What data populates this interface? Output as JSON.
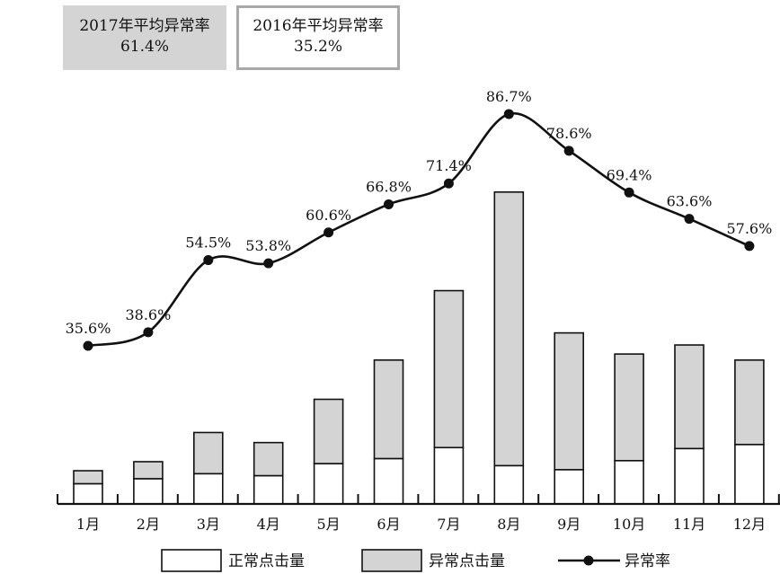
{
  "summary": {
    "box_2017": {
      "title": "2017年平均异常率",
      "value": "61.4%",
      "bg": "#d4d4d4"
    },
    "box_2016": {
      "title": "2016年平均异常率",
      "value": "35.2%",
      "border": "#a8a8a8"
    }
  },
  "chart_data": {
    "type": "bar",
    "stacked": true,
    "categories": [
      "1月",
      "2月",
      "3月",
      "4月",
      "5月",
      "6月",
      "7月",
      "8月",
      "9月",
      "10月",
      "11月",
      "12月"
    ],
    "series": [
      {
        "name": "正常点击量",
        "color": "#ffffff",
        "values": [
          20,
          25,
          30,
          28,
          40,
          45,
          56,
          38,
          34,
          43,
          55,
          59
        ]
      },
      {
        "name": "异常点击量",
        "color": "#d4d4d4",
        "values": [
          13,
          17,
          41,
          33,
          64,
          98,
          156,
          272,
          136,
          106,
          103,
          84
        ]
      }
    ],
    "rate": {
      "name": "异常率",
      "values": [
        35.6,
        38.6,
        54.5,
        53.8,
        60.6,
        66.8,
        71.4,
        86.7,
        78.6,
        69.4,
        63.6,
        57.6
      ],
      "labels": [
        "35.6%",
        "38.6%",
        "54.5%",
        "53.8%",
        "60.6%",
        "66.8%",
        "71.4%",
        "86.7%",
        "78.6%",
        "69.4%",
        "63.6%",
        "57.6%"
      ],
      "color": "#111111"
    },
    "legend_placement": "bottom",
    "grid": false
  }
}
